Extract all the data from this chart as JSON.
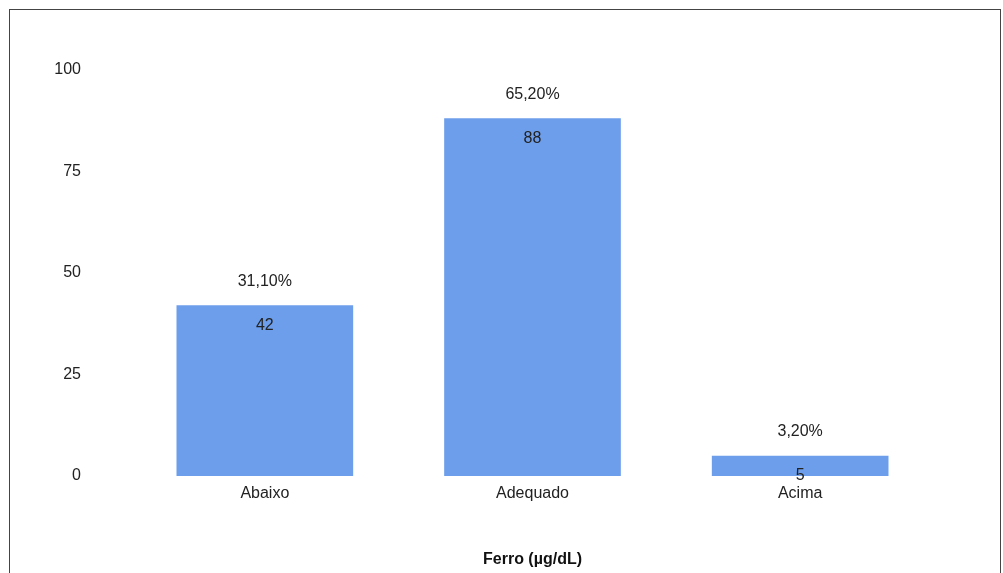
{
  "chart_data": {
    "type": "bar",
    "xlabel": "Ferro (µg/dL)",
    "categories": [
      "Abaixo",
      "Adequado",
      "Acima"
    ],
    "values": [
      42,
      88,
      5
    ],
    "color": "#6d9eeb",
    "data_labels": true,
    "ylim": [
      0,
      100
    ],
    "yticks": [
      0,
      25,
      50,
      75,
      100
    ],
    "grid": false,
    "legend": false,
    "annotations": [
      {
        "text": "31,10%",
        "x": "Abaixo",
        "y": 42
      },
      {
        "text": "65,20%",
        "x": "Adequado",
        "y": 88
      },
      {
        "text": "3,20%",
        "x": "Acima",
        "y": 5
      }
    ]
  }
}
